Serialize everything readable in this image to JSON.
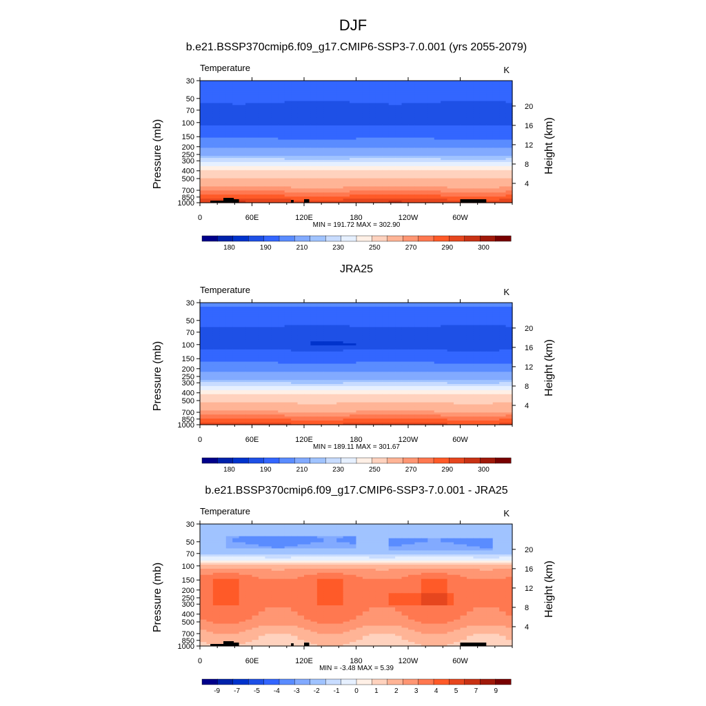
{
  "figure": {
    "season": "DJF"
  },
  "colors": {
    "temp_levels": [
      "#00008a",
      "#0022aa",
      "#0033cc",
      "#1e50e6",
      "#3366ff",
      "#5a8cff",
      "#82aaff",
      "#a0c3ff",
      "#c8dcff",
      "#e6f0ff",
      "#fff0e6",
      "#ffd2be",
      "#ffb496",
      "#ff9673",
      "#ff7850",
      "#ff5a28",
      "#e6461e",
      "#c83214",
      "#a0190a",
      "#780000"
    ],
    "land": "#000000"
  },
  "chart_data": [
    {
      "type": "heatmap",
      "title": "b.e21.BSSP370cmip6.f09_g17.CMIP6-SSP3-7.0.001 (yrs 2055-2079)",
      "variable": "Temperature",
      "units": "K",
      "ylabel": "Pressure (mb)",
      "ylabel_right": "Height (km)",
      "x_ticks": [
        "0",
        "60E",
        "120E",
        "180",
        "120W",
        "60W"
      ],
      "x_range_deg": [
        0,
        360
      ],
      "y_ticks": [
        "30",
        "50",
        "70",
        "100",
        "150",
        "200",
        "250",
        "300",
        "400",
        "500",
        "700",
        "850",
        "1000"
      ],
      "y_pressure_range": [
        30,
        1000
      ],
      "y_ticks_right": [
        "20",
        "16",
        "12",
        "8",
        "4"
      ],
      "stats": "MIN = 191.72  MAX = 302.90",
      "min": 191.72,
      "max": 302.9,
      "colorbar_labels": [
        "180",
        "190",
        "210",
        "230",
        "250",
        "270",
        "290",
        "300"
      ],
      "profile": [
        [
          30,
          210
        ],
        [
          50,
          201
        ],
        [
          70,
          198
        ],
        [
          100,
          198
        ],
        [
          150,
          208
        ],
        [
          200,
          218
        ],
        [
          250,
          228
        ],
        [
          300,
          238
        ],
        [
          400,
          251
        ],
        [
          500,
          260
        ],
        [
          700,
          274
        ],
        [
          850,
          282
        ],
        [
          1000,
          290
        ]
      ],
      "features": [
        {
          "lon": [
            20,
            60
          ],
          "p": 90,
          "delta": -3
        }
      ]
    },
    {
      "type": "heatmap",
      "title": "JRA25",
      "variable": "Temperature",
      "units": "K",
      "ylabel": "Pressure (mb)",
      "ylabel_right": "Height (km)",
      "x_ticks": [
        "0",
        "60E",
        "120E",
        "180",
        "120W",
        "60W"
      ],
      "x_range_deg": [
        0,
        360
      ],
      "y_ticks": [
        "30",
        "50",
        "70",
        "100",
        "150",
        "200",
        "250",
        "300",
        "400",
        "500",
        "700",
        "850",
        "1000"
      ],
      "y_pressure_range": [
        30,
        1000
      ],
      "y_ticks_right": [
        "20",
        "16",
        "12",
        "8",
        "4"
      ],
      "stats": "MIN = 189.11  MAX = 301.67",
      "min": 189.11,
      "max": 301.67,
      "colorbar_labels": [
        "180",
        "190",
        "210",
        "230",
        "250",
        "270",
        "290",
        "300"
      ],
      "profile": [
        [
          30,
          212
        ],
        [
          50,
          203
        ],
        [
          70,
          197
        ],
        [
          100,
          196
        ],
        [
          150,
          206
        ],
        [
          200,
          216
        ],
        [
          250,
          225
        ],
        [
          300,
          235
        ],
        [
          400,
          248
        ],
        [
          500,
          257
        ],
        [
          700,
          271
        ],
        [
          850,
          280
        ],
        [
          1000,
          287
        ]
      ],
      "features": [
        {
          "lon": [
            130,
            195
          ],
          "p": 100,
          "delta": -6
        }
      ]
    },
    {
      "type": "heatmap",
      "title": "b.e21.BSSP370cmip6.f09_g17.CMIP6-SSP3-7.0.001 - JRA25",
      "variable": "Temperature",
      "units": "K",
      "ylabel": "Pressure (mb)",
      "ylabel_right": "Height (km)",
      "x_ticks": [
        "0",
        "60E",
        "120E",
        "180",
        "120W",
        "60W"
      ],
      "x_range_deg": [
        0,
        360
      ],
      "y_ticks": [
        "30",
        "50",
        "70",
        "100",
        "150",
        "200",
        "250",
        "300",
        "400",
        "500",
        "700",
        "850",
        "1000"
      ],
      "y_pressure_range": [
        30,
        1000
      ],
      "y_ticks_right": [
        "20",
        "16",
        "12",
        "8",
        "4"
      ],
      "stats": "MIN =  -3.48  MAX =   5.39",
      "min": -3.48,
      "max": 5.39,
      "colorbar_labels": [
        "-9",
        "-7",
        "-5",
        "-4",
        "-3",
        "-2",
        "-1",
        "0",
        "1",
        "2",
        "3",
        "4",
        "5",
        "7",
        "9"
      ],
      "diff_profile": [
        [
          30,
          -2.5
        ],
        [
          50,
          -2.6
        ],
        [
          70,
          -2.2
        ],
        [
          90,
          0.5
        ],
        [
          100,
          2.6
        ],
        [
          120,
          3.4
        ],
        [
          150,
          4.6
        ],
        [
          200,
          4.7
        ],
        [
          300,
          4.6
        ],
        [
          500,
          3.8
        ],
        [
          700,
          2.5
        ],
        [
          850,
          2.0
        ],
        [
          1000,
          1.5
        ]
      ],
      "diff_features": [
        {
          "lon": [
            30,
            180
          ],
          "p": 50,
          "delta": -1.5
        },
        {
          "lon": [
            220,
            340
          ],
          "p": 55,
          "delta": -1.5
        },
        {
          "lon": [
            215,
            290
          ],
          "p": 260,
          "delta": 1.0
        }
      ]
    }
  ]
}
